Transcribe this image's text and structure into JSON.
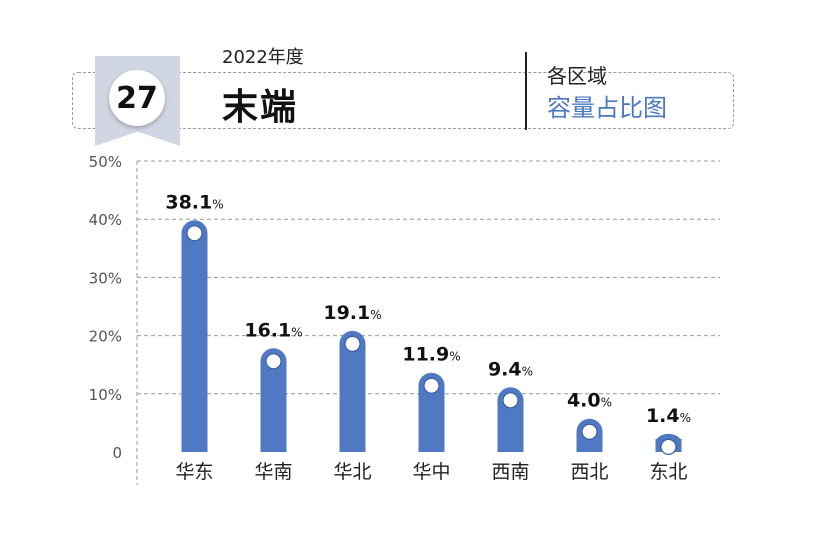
{
  "header": {
    "badge_number": "27",
    "year": "2022年度",
    "title": "末端",
    "subtitle_line1": "各区域",
    "subtitle_line2": "容量占比图"
  },
  "colors": {
    "bar": "#4f79c3",
    "accent": "#4a78c2",
    "badge": "#d0d6e2"
  },
  "chart_data": {
    "type": "bar",
    "categories": [
      "华东",
      "华南",
      "华北",
      "华中",
      "西南",
      "西北",
      "东北"
    ],
    "values": [
      38.1,
      16.1,
      19.1,
      11.9,
      9.4,
      4.0,
      1.4
    ],
    "value_labels": [
      "38.1",
      "16.1",
      "19.1",
      "11.9",
      "9.4",
      "4.0",
      "1.4"
    ],
    "value_unit": "%",
    "yticks": [
      "0",
      "10%",
      "20%",
      "30%",
      "40%",
      "50%"
    ],
    "ylim": [
      0,
      50
    ],
    "grid": true,
    "title": "",
    "xlabel": "",
    "ylabel": ""
  }
}
